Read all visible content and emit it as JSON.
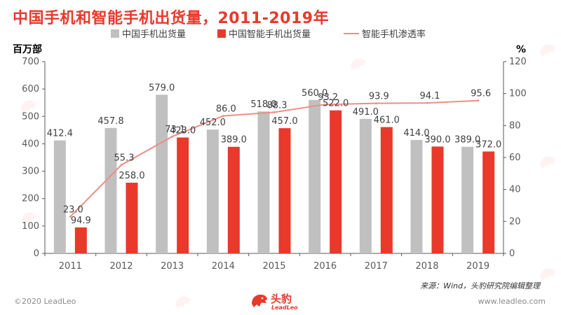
{
  "title": "中国手机和智能手机出货量，2011-2019年",
  "footer": {
    "copyright": "©2020 LeadLeo",
    "website": "www.leadleo.com",
    "source": "来源：Wind，头豹研究院编辑整理",
    "logo_text": "头豹",
    "logo_sub": "LeadLeo"
  },
  "colors": {
    "title": "#e8392b",
    "bar_phone": "#c0c0c0",
    "bar_smart": "#e8392b",
    "line_rate": "#ec8f86",
    "axis": "#595959",
    "grid": "#d9d9d9"
  },
  "chart_data": {
    "type": "bar",
    "categories": [
      "2011",
      "2012",
      "2013",
      "2014",
      "2015",
      "2016",
      "2017",
      "2018",
      "2019"
    ],
    "ylabel_left": "百万部",
    "ylabel_right": "%",
    "ylim_left": [
      0,
      700
    ],
    "ylim_right": [
      0,
      120
    ],
    "yticks_left": [
      "0",
      "100",
      "200",
      "300",
      "400",
      "500",
      "600",
      "700"
    ],
    "yticks_right": [
      "0",
      "20",
      "40",
      "60",
      "80",
      "100",
      "120"
    ],
    "legend_position": "top",
    "grid": false,
    "series": [
      {
        "name": "中国手机出货量",
        "type": "bar",
        "axis": "left",
        "values": [
          412.4,
          457.8,
          579.0,
          452.0,
          518.0,
          560.0,
          491.0,
          414.0,
          389.0
        ],
        "labels": [
          "412.4",
          "457.8",
          "579.0",
          "452.0",
          "518.0",
          "560.0",
          "491.0",
          "414.0",
          "389.0"
        ]
      },
      {
        "name": "中国智能手机出货量",
        "type": "bar",
        "axis": "left",
        "values": [
          94.9,
          258.0,
          423.0,
          389.0,
          457.0,
          522.0,
          461.0,
          390.0,
          372.0
        ],
        "labels": [
          "94.9",
          "258.0",
          "423.0",
          "389.0",
          "457.0",
          "522.0",
          "461.0",
          "390.0",
          "372.0"
        ]
      },
      {
        "name": "智能手机渗透率",
        "type": "line",
        "axis": "right",
        "values": [
          23.0,
          55.3,
          73.1,
          86.0,
          88.3,
          93.2,
          93.9,
          94.1,
          95.6
        ],
        "labels": [
          "23.0",
          "55.3",
          "73.1",
          "86.0",
          "88.3",
          "93.2",
          "93.9",
          "94.1",
          "95.6"
        ]
      }
    ]
  }
}
